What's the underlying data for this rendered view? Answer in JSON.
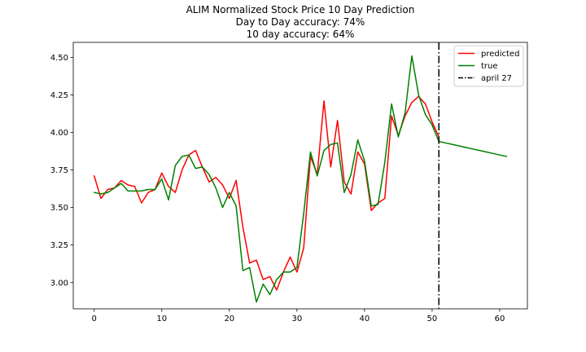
{
  "chart_data": {
    "type": "line",
    "title_lines": [
      "ALIM Normalized Stock Price 10 Day Prediction",
      "Day to Day accuracy: 74%",
      "10 day accuracy: 64%"
    ],
    "xlabel": "",
    "ylabel": "",
    "xlim": [
      -3.1,
      64.1
    ],
    "ylim": [
      2.825,
      4.6
    ],
    "x_ticks": [
      0,
      10,
      20,
      30,
      40,
      50,
      60
    ],
    "x_tick_labels": [
      "0",
      "10",
      "20",
      "30",
      "40",
      "50",
      "60"
    ],
    "y_ticks": [
      3.0,
      3.25,
      3.5,
      3.75,
      4.0,
      4.25,
      4.5
    ],
    "y_tick_labels": [
      "3.00",
      "3.25",
      "3.50",
      "3.75",
      "4.00",
      "4.25",
      "4.50"
    ],
    "grid": false,
    "legend_position": "top-right",
    "series": [
      {
        "name": "predicted",
        "color": "#ff0000",
        "style": "solid",
        "x": [
          0,
          1,
          2,
          3,
          4,
          5,
          6,
          7,
          8,
          9,
          10,
          11,
          12,
          13,
          14,
          15,
          16,
          17,
          18,
          19,
          20,
          21,
          22,
          23,
          24,
          25,
          26,
          27,
          28,
          29,
          30,
          31,
          32,
          33,
          34,
          35,
          36,
          37,
          38,
          39,
          40,
          41,
          42,
          43,
          44,
          45,
          46,
          47,
          48,
          49,
          50,
          51
        ],
        "y": [
          3.71,
          3.56,
          3.62,
          3.63,
          3.68,
          3.65,
          3.64,
          3.53,
          3.6,
          3.62,
          3.73,
          3.64,
          3.6,
          3.75,
          3.85,
          3.88,
          3.77,
          3.67,
          3.7,
          3.65,
          3.56,
          3.68,
          3.37,
          3.13,
          3.15,
          3.02,
          3.04,
          2.95,
          3.07,
          3.17,
          3.07,
          3.23,
          3.84,
          3.72,
          4.21,
          3.77,
          4.08,
          3.67,
          3.59,
          3.87,
          3.79,
          3.48,
          3.53,
          3.56,
          4.11,
          3.98,
          4.11,
          4.2,
          4.24,
          4.19,
          4.07,
          3.97
        ]
      },
      {
        "name": "true",
        "color": "#008000",
        "style": "solid",
        "x": [
          0,
          1,
          2,
          3,
          4,
          5,
          6,
          7,
          8,
          9,
          10,
          11,
          12,
          13,
          14,
          15,
          16,
          17,
          18,
          19,
          20,
          21,
          22,
          23,
          24,
          25,
          26,
          27,
          28,
          29,
          30,
          31,
          32,
          33,
          34,
          35,
          36,
          37,
          38,
          39,
          40,
          41,
          42,
          43,
          44,
          45,
          46,
          47,
          48,
          49,
          50,
          51,
          52,
          53,
          54,
          55,
          56,
          57,
          58,
          59,
          60,
          61
        ],
        "y": [
          3.6,
          3.59,
          3.6,
          3.63,
          3.66,
          3.61,
          3.61,
          3.61,
          3.62,
          3.62,
          3.69,
          3.55,
          3.78,
          3.84,
          3.85,
          3.76,
          3.77,
          3.72,
          3.63,
          3.5,
          3.6,
          3.51,
          3.08,
          3.1,
          2.87,
          2.99,
          2.92,
          3.02,
          3.07,
          3.07,
          3.1,
          3.46,
          3.87,
          3.71,
          3.88,
          3.92,
          3.93,
          3.6,
          3.72,
          3.95,
          3.81,
          3.51,
          3.52,
          3.8,
          4.19,
          3.97,
          4.13,
          4.51,
          4.25,
          4.12,
          4.05,
          3.94,
          3.93,
          3.92,
          3.91,
          3.9,
          3.89,
          3.88,
          3.87,
          3.86,
          3.85,
          3.84
        ]
      }
    ],
    "annotations": [
      {
        "type": "vline",
        "x": 51,
        "label": "april 27",
        "color": "#000000",
        "style": "dashdot"
      }
    ]
  }
}
